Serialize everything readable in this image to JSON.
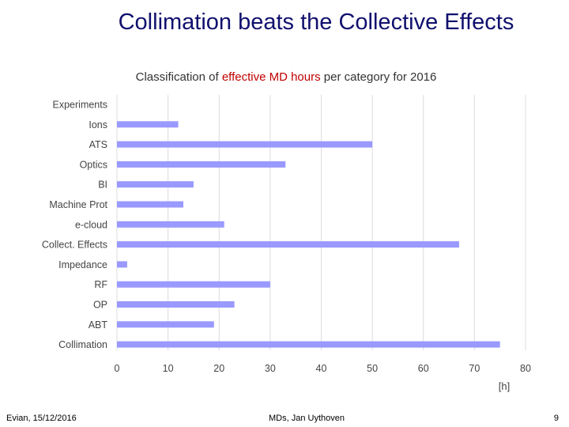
{
  "slide": {
    "title": "Collimation beats the Collective Effects",
    "footer_left": "Evian, 15/12/2016",
    "footer_center": "MDs, Jan Uythoven",
    "page_number": "9"
  },
  "colors": {
    "title": "#10106e",
    "bar": "#9999ff",
    "highlight": "#c00000",
    "grid": "#dcdcdc",
    "label": "#444444"
  },
  "chart_data": {
    "type": "bar",
    "orientation": "horizontal",
    "title_parts": [
      {
        "text": "Classification of ",
        "highlight": false
      },
      {
        "text": "effective MD hours",
        "highlight": true
      },
      {
        "text": " per category for 2016",
        "highlight": false
      }
    ],
    "categories": [
      "Experiments",
      "Ions",
      "ATS",
      "Optics",
      "BI",
      "Machine Prot",
      "e-cloud",
      "Collect. Effects",
      "Impedance",
      "RF",
      "OP",
      "ABT",
      "Collimation"
    ],
    "values": [
      0,
      12,
      50,
      33,
      15,
      13,
      21,
      67,
      2,
      30,
      23,
      19,
      75
    ],
    "xlim": [
      0,
      80
    ],
    "xticks": [
      0,
      10,
      20,
      30,
      40,
      50,
      60,
      70,
      80
    ],
    "xlabel": "[h]",
    "grid": true,
    "legend": "none"
  }
}
